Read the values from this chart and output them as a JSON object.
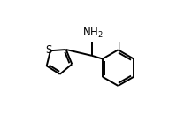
{
  "bg_color": "#ffffff",
  "line_color": "#000000",
  "text_color": "#000000",
  "lw": 1.4,
  "figsize": [
    2.08,
    1.31
  ],
  "dpi": 100,
  "xlim": [
    0.0,
    1.0
  ],
  "ylim": [
    0.0,
    1.0
  ]
}
